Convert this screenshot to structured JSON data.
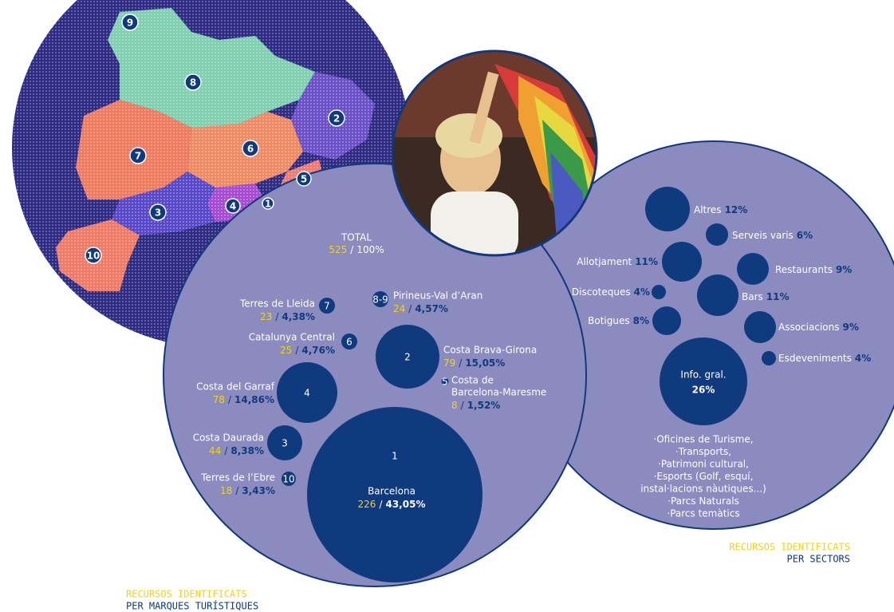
{
  "map": {
    "markers": [
      "9",
      "8",
      "2",
      "7",
      "6",
      "5",
      "4",
      "1",
      "3",
      "10"
    ]
  },
  "brands": {
    "total": {
      "label": "TOTAL",
      "count": 525,
      "percent": "100%"
    },
    "separator": "/",
    "items": [
      {
        "id": "1",
        "name": "Barcelona",
        "count": 226,
        "percent": "43,05%"
      },
      {
        "id": "2",
        "name": "Costa Brava-Girona",
        "count": 79,
        "percent": "15,05%"
      },
      {
        "id": "3",
        "name": "Costa Daurada",
        "count": 44,
        "percent": "8,38%"
      },
      {
        "id": "4",
        "name": "Costa del Garraf",
        "count": 78,
        "percent": "14,86%"
      },
      {
        "id": "5",
        "name": [
          "Costa de",
          "Barcelona-Maresme"
        ],
        "count": 8,
        "percent": "1,52%"
      },
      {
        "id": "6",
        "name": "Catalunya Central",
        "count": 25,
        "percent": "4,76%"
      },
      {
        "id": "7",
        "name": "Terres de Lleida",
        "count": 23,
        "percent": "4,38%"
      },
      {
        "id": "8-9",
        "name": "Pirineus-Val d’Aran",
        "count": 24,
        "percent": "4,57%"
      },
      {
        "id": "10",
        "name": "Terres de l’Ebre",
        "count": 18,
        "percent": "3,43%"
      }
    ],
    "caption": [
      "RECURSOS IDENTIFICATS",
      "PER MARQUES TURÍSTIQUES"
    ]
  },
  "sectors": {
    "items": [
      {
        "name": "Altres",
        "percent": "12%"
      },
      {
        "name": "Serveis varis",
        "percent": "6%"
      },
      {
        "name": "Allotjament",
        "percent": "11%"
      },
      {
        "name": "Restaurants",
        "percent": "9%"
      },
      {
        "name": "Discoteques",
        "percent": "4%"
      },
      {
        "name": "Bars",
        "percent": "11%"
      },
      {
        "name": "Botigues",
        "percent": "8%"
      },
      {
        "name": "Associacions",
        "percent": "9%"
      },
      {
        "name": "Esdeveniments",
        "percent": "4%"
      },
      {
        "name": "Info. gral.",
        "percent": "26%"
      }
    ],
    "notes": [
      "·Oficines de Turisme,",
      "·Transports,",
      "·Patrimoni cultural,",
      "·Esports (Golf, esquí,",
      "instal·lacions nàutiques...)",
      "·Parcs Naturals",
      "·Parcs temàtics"
    ],
    "caption": [
      "RECURSOS IDENTIFICATS",
      "PER SECTORS"
    ]
  }
}
